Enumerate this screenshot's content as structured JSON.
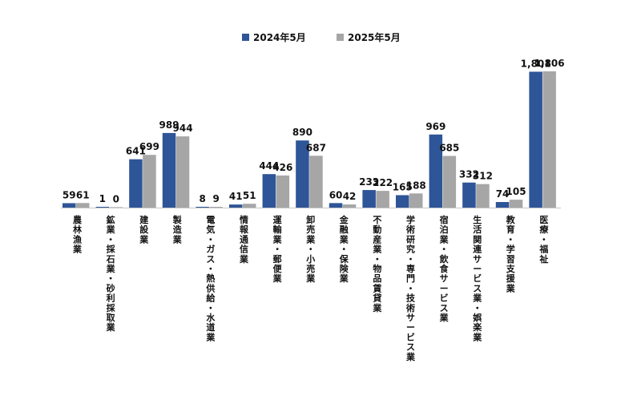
{
  "chart_data": {
    "type": "bar",
    "title": "",
    "xlabel": "",
    "ylabel": "",
    "ylim": [
      0,
      1900
    ],
    "grid": false,
    "legend_position": "top-center",
    "colors": {
      "series1": "#2e5597",
      "series2": "#a6a6a6"
    },
    "categories": [
      "農林漁業",
      "鉱業・採石業・砂利採取業",
      "建設業",
      "製造業",
      "電気・ガス・熱供給・水道業",
      "情報通信業",
      "運輸業・郵便業",
      "卸売業・小売業",
      "金融業・保険業",
      "不動産業・物品賃貸業",
      "学術研究・専門・技術サービス業",
      "宿泊業・飲食サービス業",
      "生活関連サービス業・娯楽業",
      "教育・学習支援業",
      "医療・福祉"
    ],
    "series": [
      {
        "name": "2024年5月",
        "values": [
          59,
          1,
          641,
          989,
          8,
          41,
          444,
          890,
          60,
          233,
          165,
          969,
          332,
          74,
          1801
        ],
        "labels": [
          "59",
          "1",
          "641",
          "989",
          "8",
          "41",
          "444",
          "890",
          "60",
          "233",
          "165",
          "969",
          "332",
          "74",
          "1,801"
        ]
      },
      {
        "name": "2025年5月",
        "values": [
          61,
          0,
          699,
          944,
          9,
          51,
          426,
          687,
          42,
          222,
          188,
          685,
          312,
          105,
          1806
        ],
        "labels": [
          "61",
          "0",
          "699",
          "944",
          "9",
          "51",
          "426",
          "687",
          "42",
          "222",
          "188",
          "685",
          "312",
          "105",
          "1,806"
        ]
      }
    ]
  }
}
